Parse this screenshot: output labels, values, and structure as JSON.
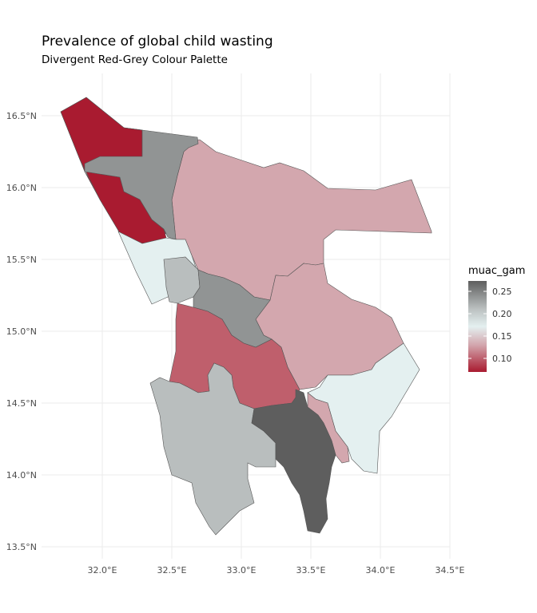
{
  "title": "Prevalence of global child wasting",
  "subtitle": "Divergent Red-Grey Colour Palette",
  "chart_data": {
    "type": "choropleth",
    "fill_variable": "muac_gam",
    "x_ticks": [
      "32.0°E",
      "32.5°E",
      "33.0°E",
      "33.5°E",
      "34.0°E",
      "34.5°E"
    ],
    "y_ticks": [
      "16.5°N",
      "16.0°N",
      "15.5°N",
      "15.0°N",
      "14.5°N",
      "14.0°N",
      "13.5°N"
    ],
    "legend": {
      "title": "muac_gam",
      "labels": [
        "0.25",
        "0.20",
        "0.15",
        "0.10"
      ],
      "colors": [
        "#5e5e5e",
        "#b9bebe",
        "#e4f0f0",
        "#d3a7ae",
        "#a91b30"
      ]
    },
    "grid": true
  }
}
